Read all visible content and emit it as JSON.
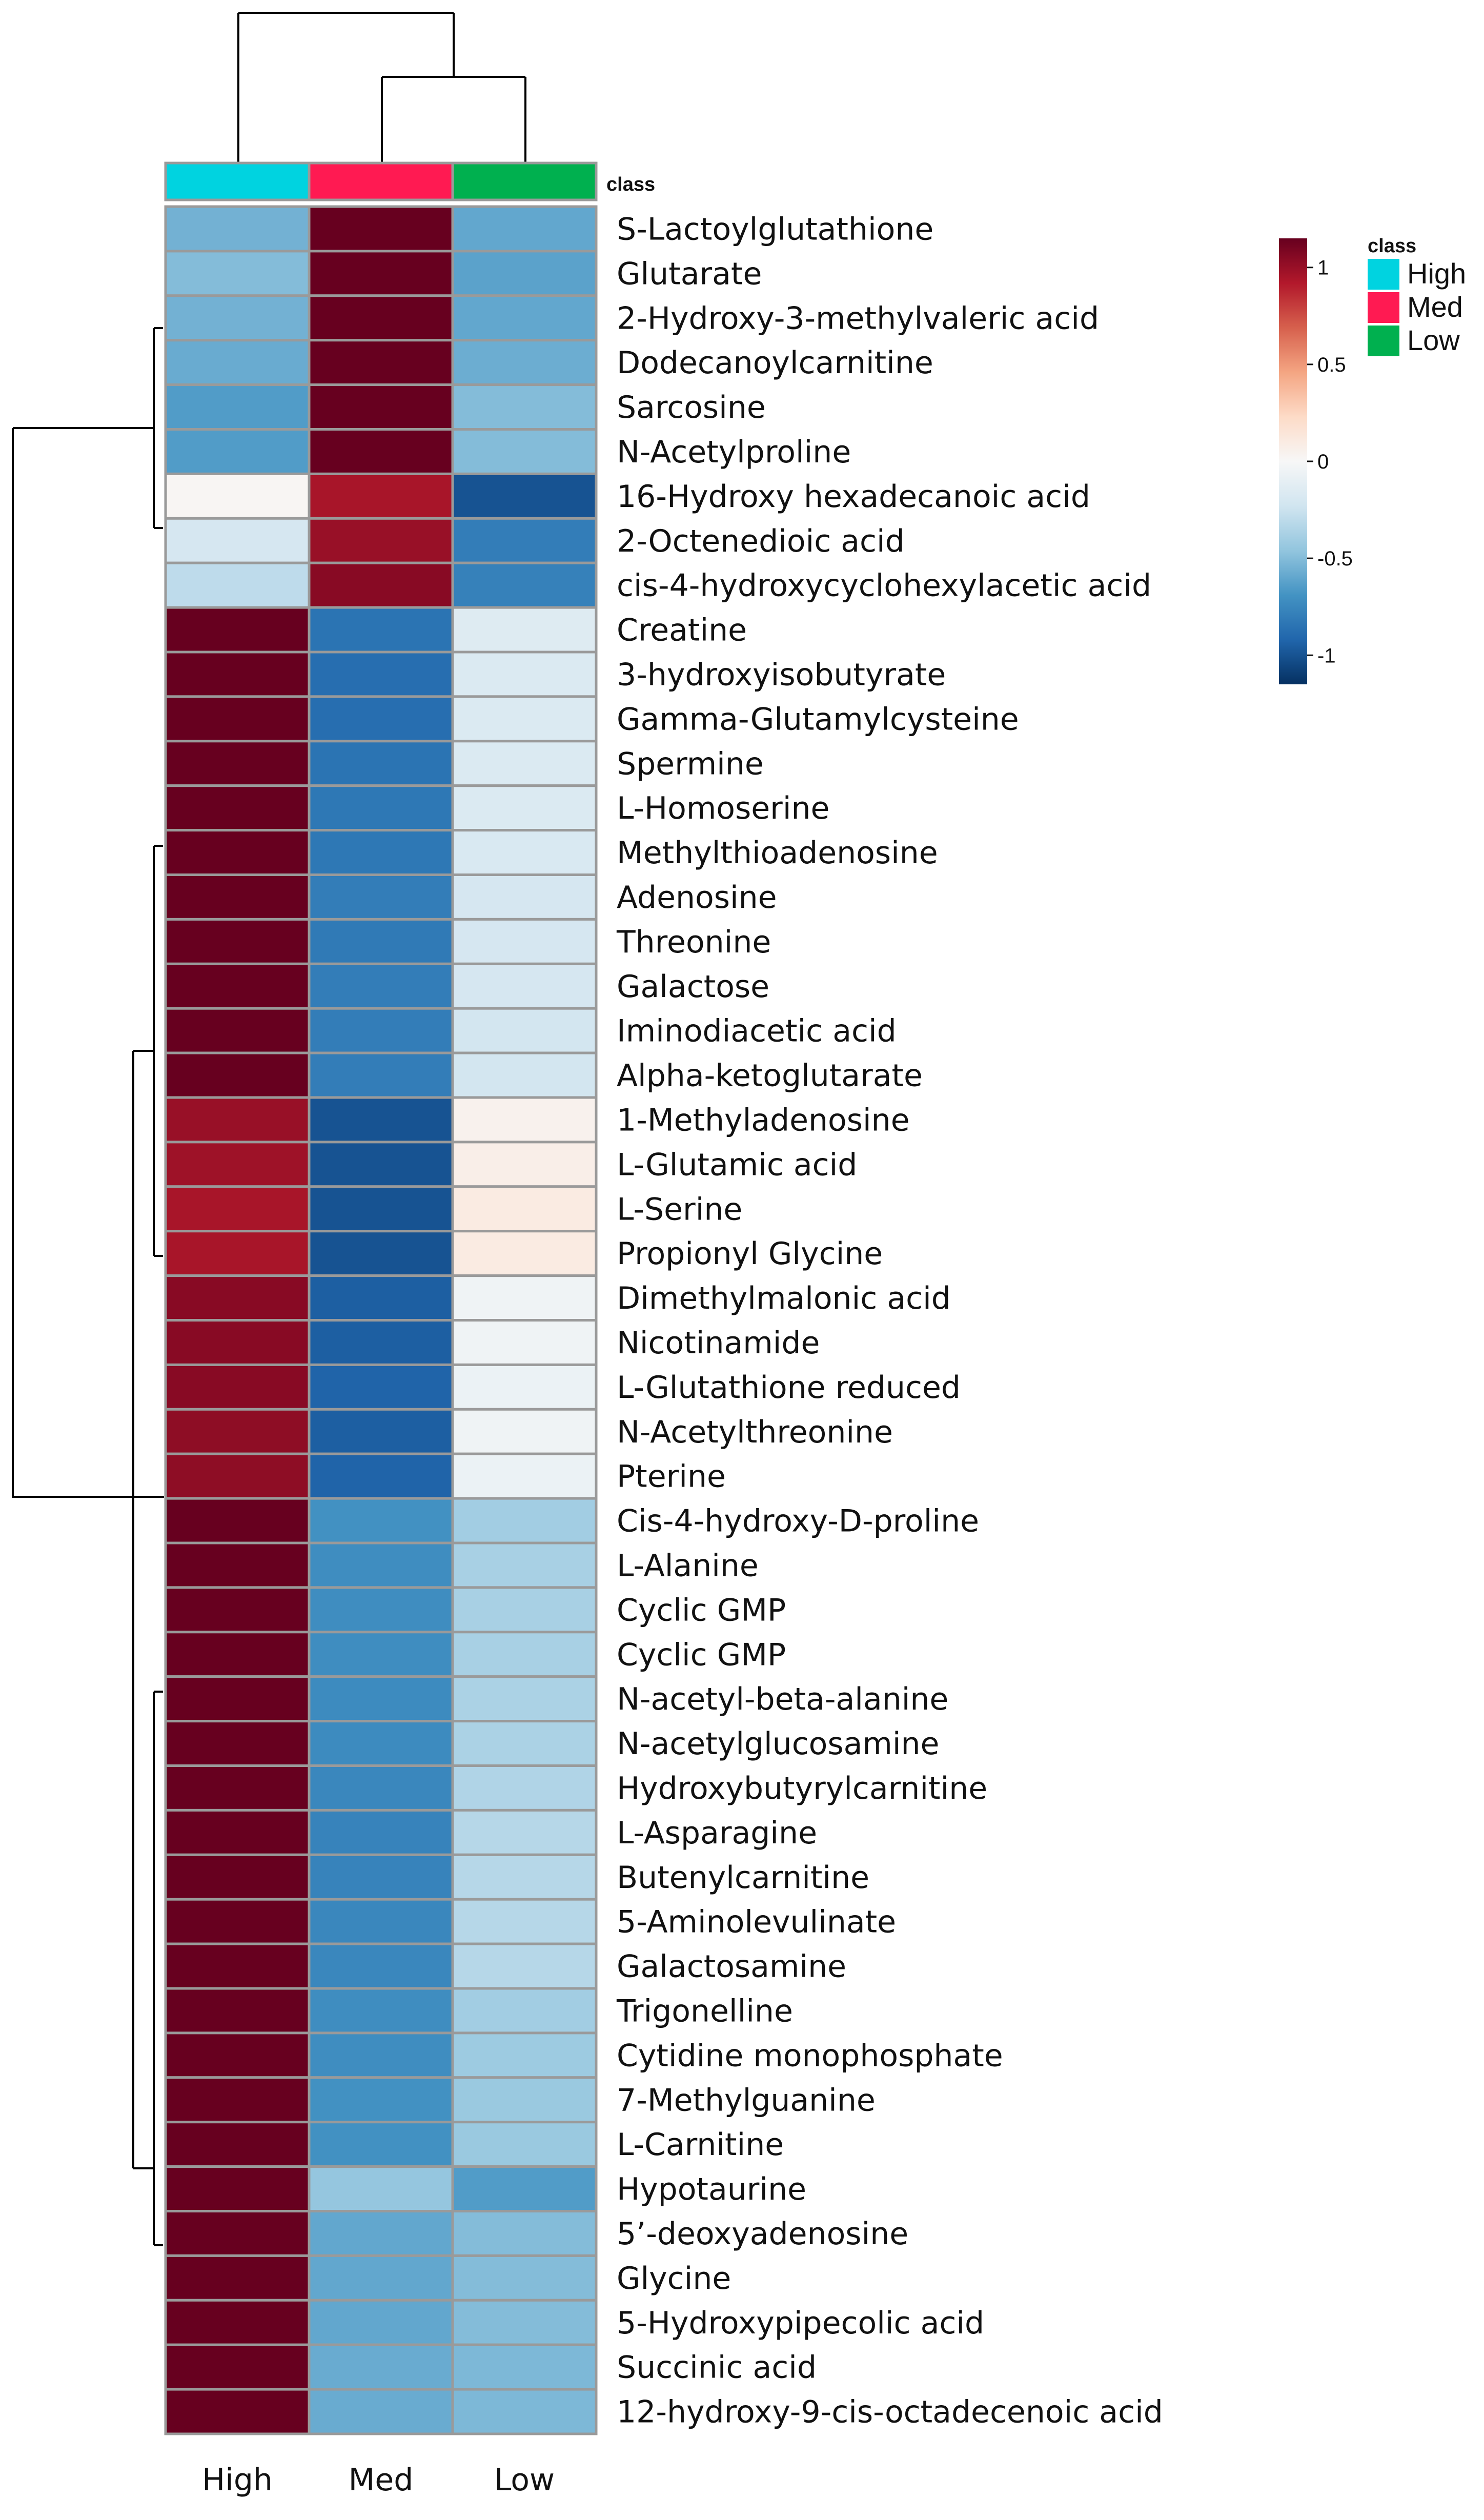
{
  "chart_data": {
    "type": "heatmap",
    "title": "",
    "columns": [
      "High",
      "Med",
      "Low"
    ],
    "class_annotation": {
      "label": "class",
      "legend_title": "class",
      "groups": [
        {
          "name": "High",
          "color": "#00d3e0"
        },
        {
          "name": "Med",
          "color": "#ff1a52"
        },
        {
          "name": "Low",
          "color": "#00b04f"
        }
      ]
    },
    "color_scale": {
      "min": -1.15,
      "max": 1.15,
      "ticks": [
        {
          "value": 1,
          "label": "1"
        },
        {
          "value": 0.5,
          "label": "0.5"
        },
        {
          "value": 0,
          "label": "0"
        },
        {
          "value": -0.5,
          "label": "-0.5"
        },
        {
          "value": -1,
          "label": "-1"
        }
      ],
      "colors": [
        "#053061",
        "#2166ac",
        "#4393c3",
        "#92c5de",
        "#d1e5f0",
        "#f7f7f7",
        "#fddbc7",
        "#f4a582",
        "#d6604d",
        "#b2182b",
        "#67001f"
      ]
    },
    "rows": [
      {
        "name": "S-Lactoylglutathione",
        "values": [
          -0.55,
          1.15,
          -0.6
        ]
      },
      {
        "name": "Glutarate",
        "values": [
          -0.5,
          1.15,
          -0.62
        ]
      },
      {
        "name": "2-Hydroxy-3-methylvaleric acid",
        "values": [
          -0.55,
          1.15,
          -0.6
        ]
      },
      {
        "name": "Dodecanoylcarnitine",
        "values": [
          -0.58,
          1.15,
          -0.57
        ]
      },
      {
        "name": "Sarcosine",
        "values": [
          -0.65,
          1.15,
          -0.5
        ]
      },
      {
        "name": "N-Acetylproline",
        "values": [
          -0.65,
          1.15,
          -0.5
        ]
      },
      {
        "name": "16-Hydroxy hexadecanoic acid",
        "values": [
          0.02,
          0.95,
          -1.0
        ]
      },
      {
        "name": "2-Octenedioic acid",
        "values": [
          -0.2,
          1.0,
          -0.8
        ]
      },
      {
        "name": "cis-4-hydroxycyclohexylacetic acid",
        "values": [
          -0.3,
          1.05,
          -0.78
        ]
      },
      {
        "name": "Creatine",
        "values": [
          1.15,
          -0.85,
          -0.15
        ]
      },
      {
        "name": "3-hydroxyisobutyrate",
        "values": [
          1.15,
          -0.88,
          -0.17
        ]
      },
      {
        "name": "Gamma-Glutamylcysteine",
        "values": [
          1.15,
          -0.88,
          -0.17
        ]
      },
      {
        "name": "Spermine",
        "values": [
          1.15,
          -0.85,
          -0.17
        ]
      },
      {
        "name": "L-Homoserine",
        "values": [
          1.15,
          -0.83,
          -0.17
        ]
      },
      {
        "name": "Methylthioadenosine",
        "values": [
          1.15,
          -0.83,
          -0.18
        ]
      },
      {
        "name": "Adenosine",
        "values": [
          1.15,
          -0.8,
          -0.2
        ]
      },
      {
        "name": "Threonine",
        "values": [
          1.15,
          -0.82,
          -0.2
        ]
      },
      {
        "name": "Galactose",
        "values": [
          1.15,
          -0.8,
          -0.2
        ]
      },
      {
        "name": "Iminodiacetic acid",
        "values": [
          1.15,
          -0.8,
          -0.22
        ]
      },
      {
        "name": "Alpha-ketoglutarate",
        "values": [
          1.15,
          -0.8,
          -0.22
        ]
      },
      {
        "name": "1-Methyladenosine",
        "values": [
          1.0,
          -1.0,
          0.05
        ]
      },
      {
        "name": "L-Glutamic acid",
        "values": [
          0.98,
          -1.0,
          0.07
        ]
      },
      {
        "name": "L-Serine",
        "values": [
          0.95,
          -1.0,
          0.1
        ]
      },
      {
        "name": "Propionyl Glycine",
        "values": [
          0.95,
          -1.0,
          0.1
        ]
      },
      {
        "name": "Dimethylmalonic acid",
        "values": [
          1.05,
          -0.95,
          -0.05
        ]
      },
      {
        "name": "Nicotinamide",
        "values": [
          1.05,
          -0.95,
          -0.05
        ]
      },
      {
        "name": "L-Glutathione reduced",
        "values": [
          1.05,
          -0.93,
          -0.07
        ]
      },
      {
        "name": "N-Acetylthreonine",
        "values": [
          1.03,
          -0.95,
          -0.05
        ]
      },
      {
        "name": "Pterine",
        "values": [
          1.03,
          -0.93,
          -0.07
        ]
      },
      {
        "name": "Cis-4-hydroxy-D-proline",
        "values": [
          1.15,
          -0.7,
          -0.4
        ]
      },
      {
        "name": "L-Alanine",
        "values": [
          1.15,
          -0.72,
          -0.38
        ]
      },
      {
        "name": "Cyclic GMP",
        "values": [
          1.15,
          -0.72,
          -0.38
        ]
      },
      {
        "name": "Cyclic GMP",
        "values": [
          1.15,
          -0.72,
          -0.38
        ]
      },
      {
        "name": "N-acetyl-beta-alanine",
        "values": [
          1.15,
          -0.73,
          -0.37
        ]
      },
      {
        "name": "N-acetylglucosamine",
        "values": [
          1.15,
          -0.73,
          -0.37
        ]
      },
      {
        "name": "Hydroxybutyrylcarnitine",
        "values": [
          1.15,
          -0.75,
          -0.35
        ]
      },
      {
        "name": "L-Asparagine",
        "values": [
          1.15,
          -0.77,
          -0.33
        ]
      },
      {
        "name": "Butenylcarnitine",
        "values": [
          1.15,
          -0.77,
          -0.33
        ]
      },
      {
        "name": "5-Aminolevulinate",
        "values": [
          1.15,
          -0.75,
          -0.33
        ]
      },
      {
        "name": "Galactosamine",
        "values": [
          1.15,
          -0.75,
          -0.33
        ]
      },
      {
        "name": "Trigonelline",
        "values": [
          1.15,
          -0.72,
          -0.4
        ]
      },
      {
        "name": "Cytidine monophosphate",
        "values": [
          1.15,
          -0.72,
          -0.42
        ]
      },
      {
        "name": "7-Methylguanine",
        "values": [
          1.15,
          -0.7,
          -0.43
        ]
      },
      {
        "name": "L-Carnitine",
        "values": [
          1.15,
          -0.7,
          -0.43
        ]
      },
      {
        "name": "Hypotaurine",
        "values": [
          1.15,
          -0.45,
          -0.65
        ]
      },
      {
        "name": "5’-deoxyadenosine",
        "values": [
          1.15,
          -0.6,
          -0.5
        ]
      },
      {
        "name": "Glycine",
        "values": [
          1.15,
          -0.6,
          -0.5
        ]
      },
      {
        "name": "5-Hydroxypipecolic acid",
        "values": [
          1.15,
          -0.6,
          -0.5
        ]
      },
      {
        "name": "Succinic acid",
        "values": [
          1.15,
          -0.58,
          -0.52
        ]
      },
      {
        "name": "12-hydroxy-9-cis-octadecenoic acid",
        "values": [
          1.15,
          -0.58,
          -0.52
        ]
      }
    ]
  }
}
